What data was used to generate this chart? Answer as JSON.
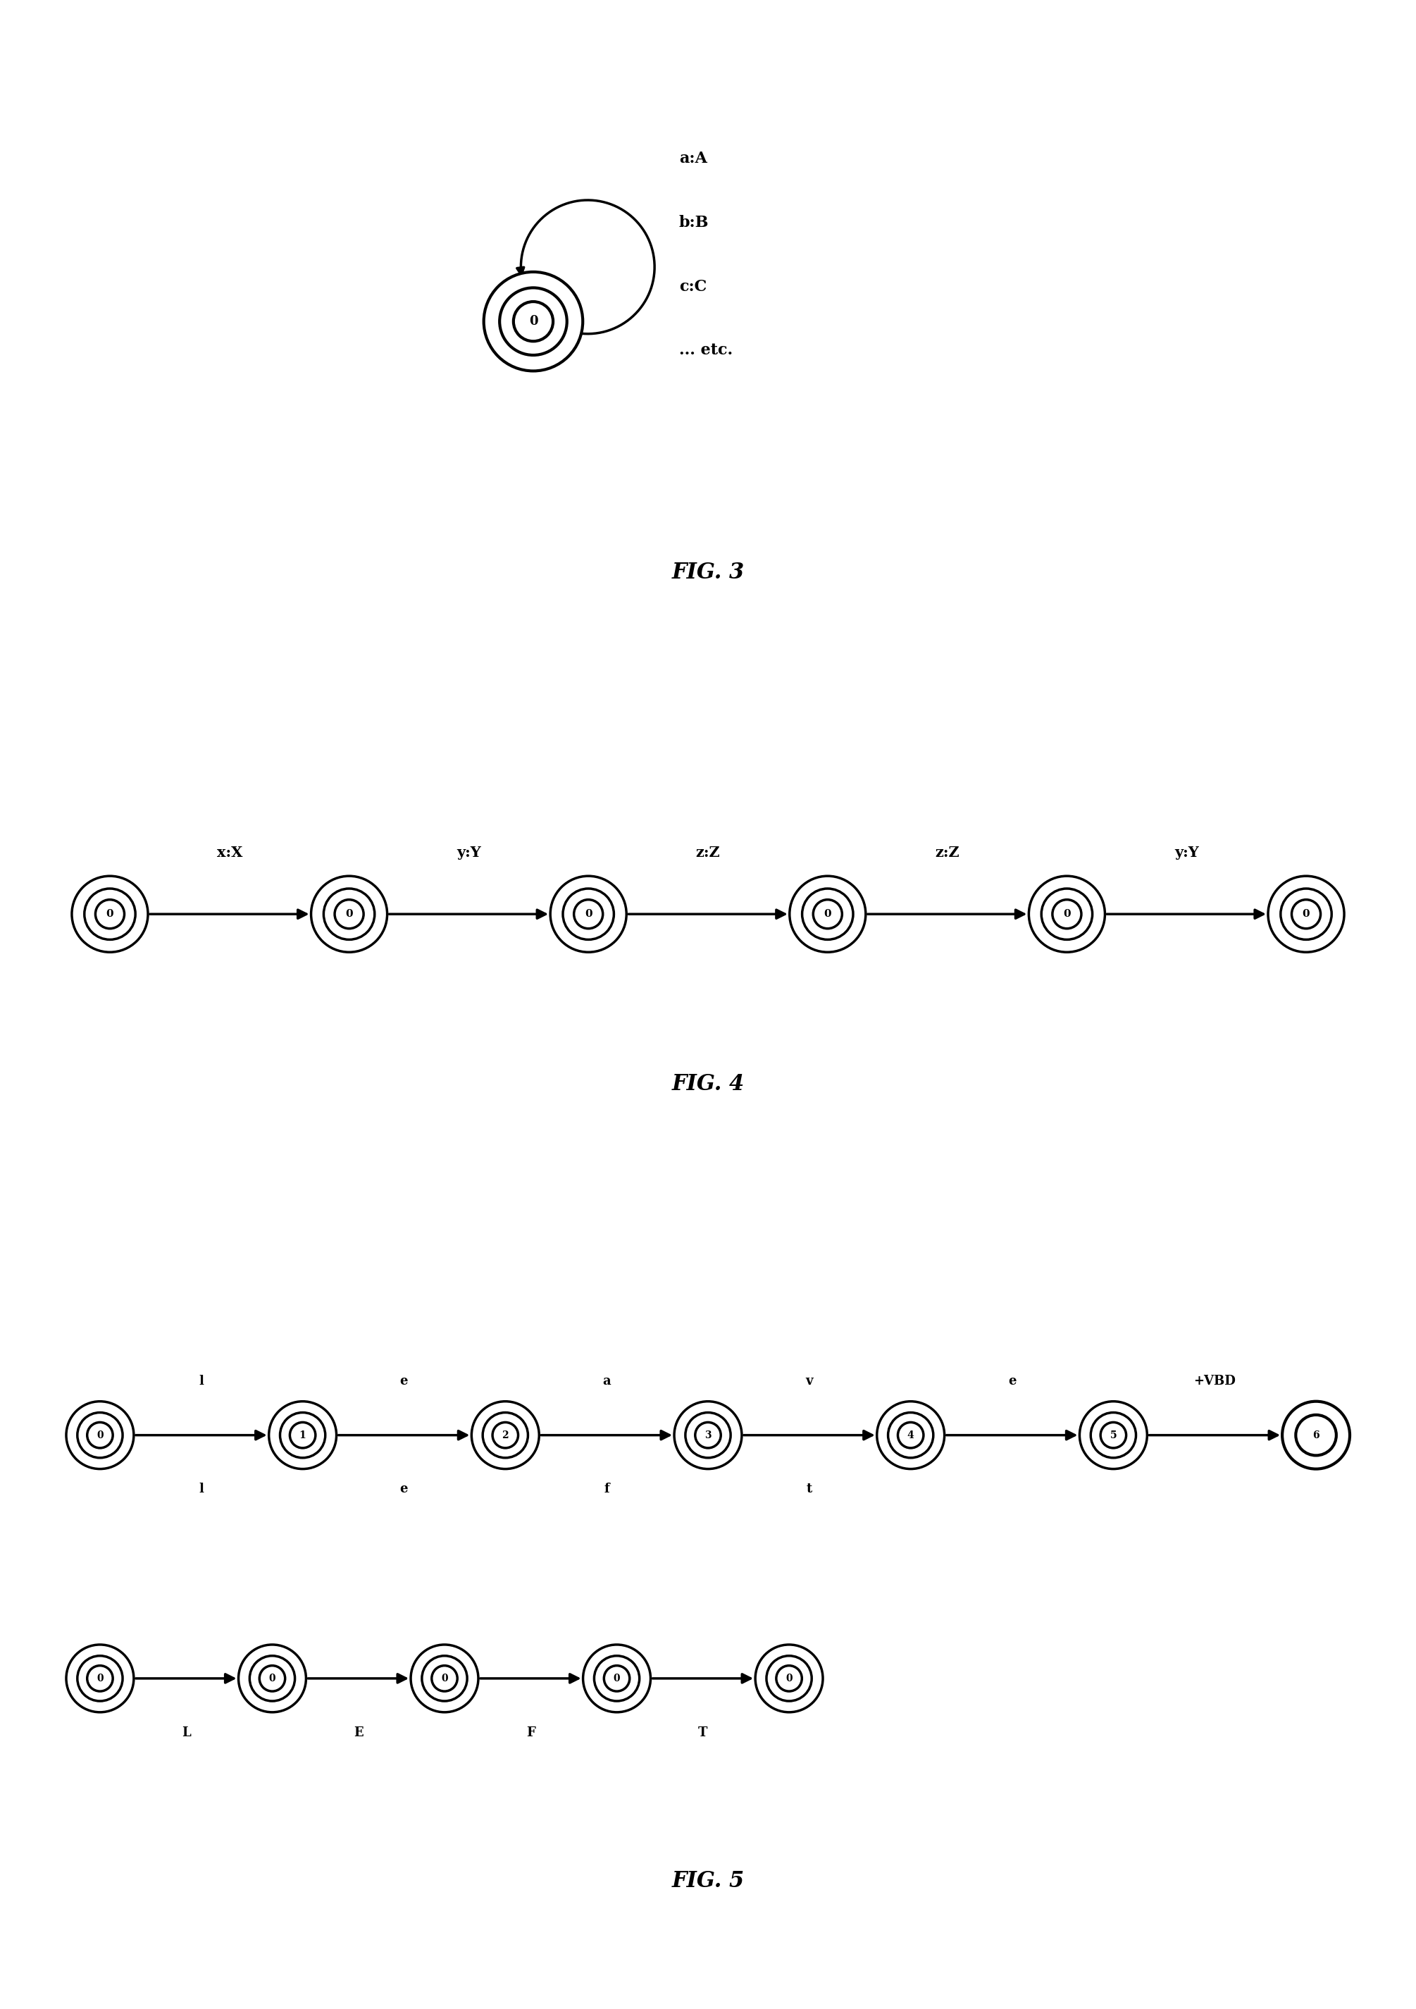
{
  "fig3": {
    "loop_labels": [
      "a:A",
      "b:B",
      "c:C",
      "... etc."
    ],
    "caption": "FIG. 3"
  },
  "fig4": {
    "edge_labels": [
      "x:X",
      "y:Y",
      "z:Z",
      "z:Z",
      "y:Y"
    ],
    "caption": "FIG. 4"
  },
  "fig5": {
    "top_labels": [
      "0",
      "1",
      "2",
      "3",
      "4",
      "5",
      "6"
    ],
    "top_above": [
      "l",
      "e",
      "a",
      "v",
      "e",
      "+VBD"
    ],
    "top_below": [
      "l",
      "e",
      "f",
      "t",
      "",
      ""
    ],
    "bot_labels": [
      "0",
      "0",
      "0",
      "0",
      "0"
    ],
    "bot_below": [
      "L",
      "E",
      "F",
      "T"
    ],
    "caption": "FIG. 5"
  },
  "bg_color": "#ffffff"
}
